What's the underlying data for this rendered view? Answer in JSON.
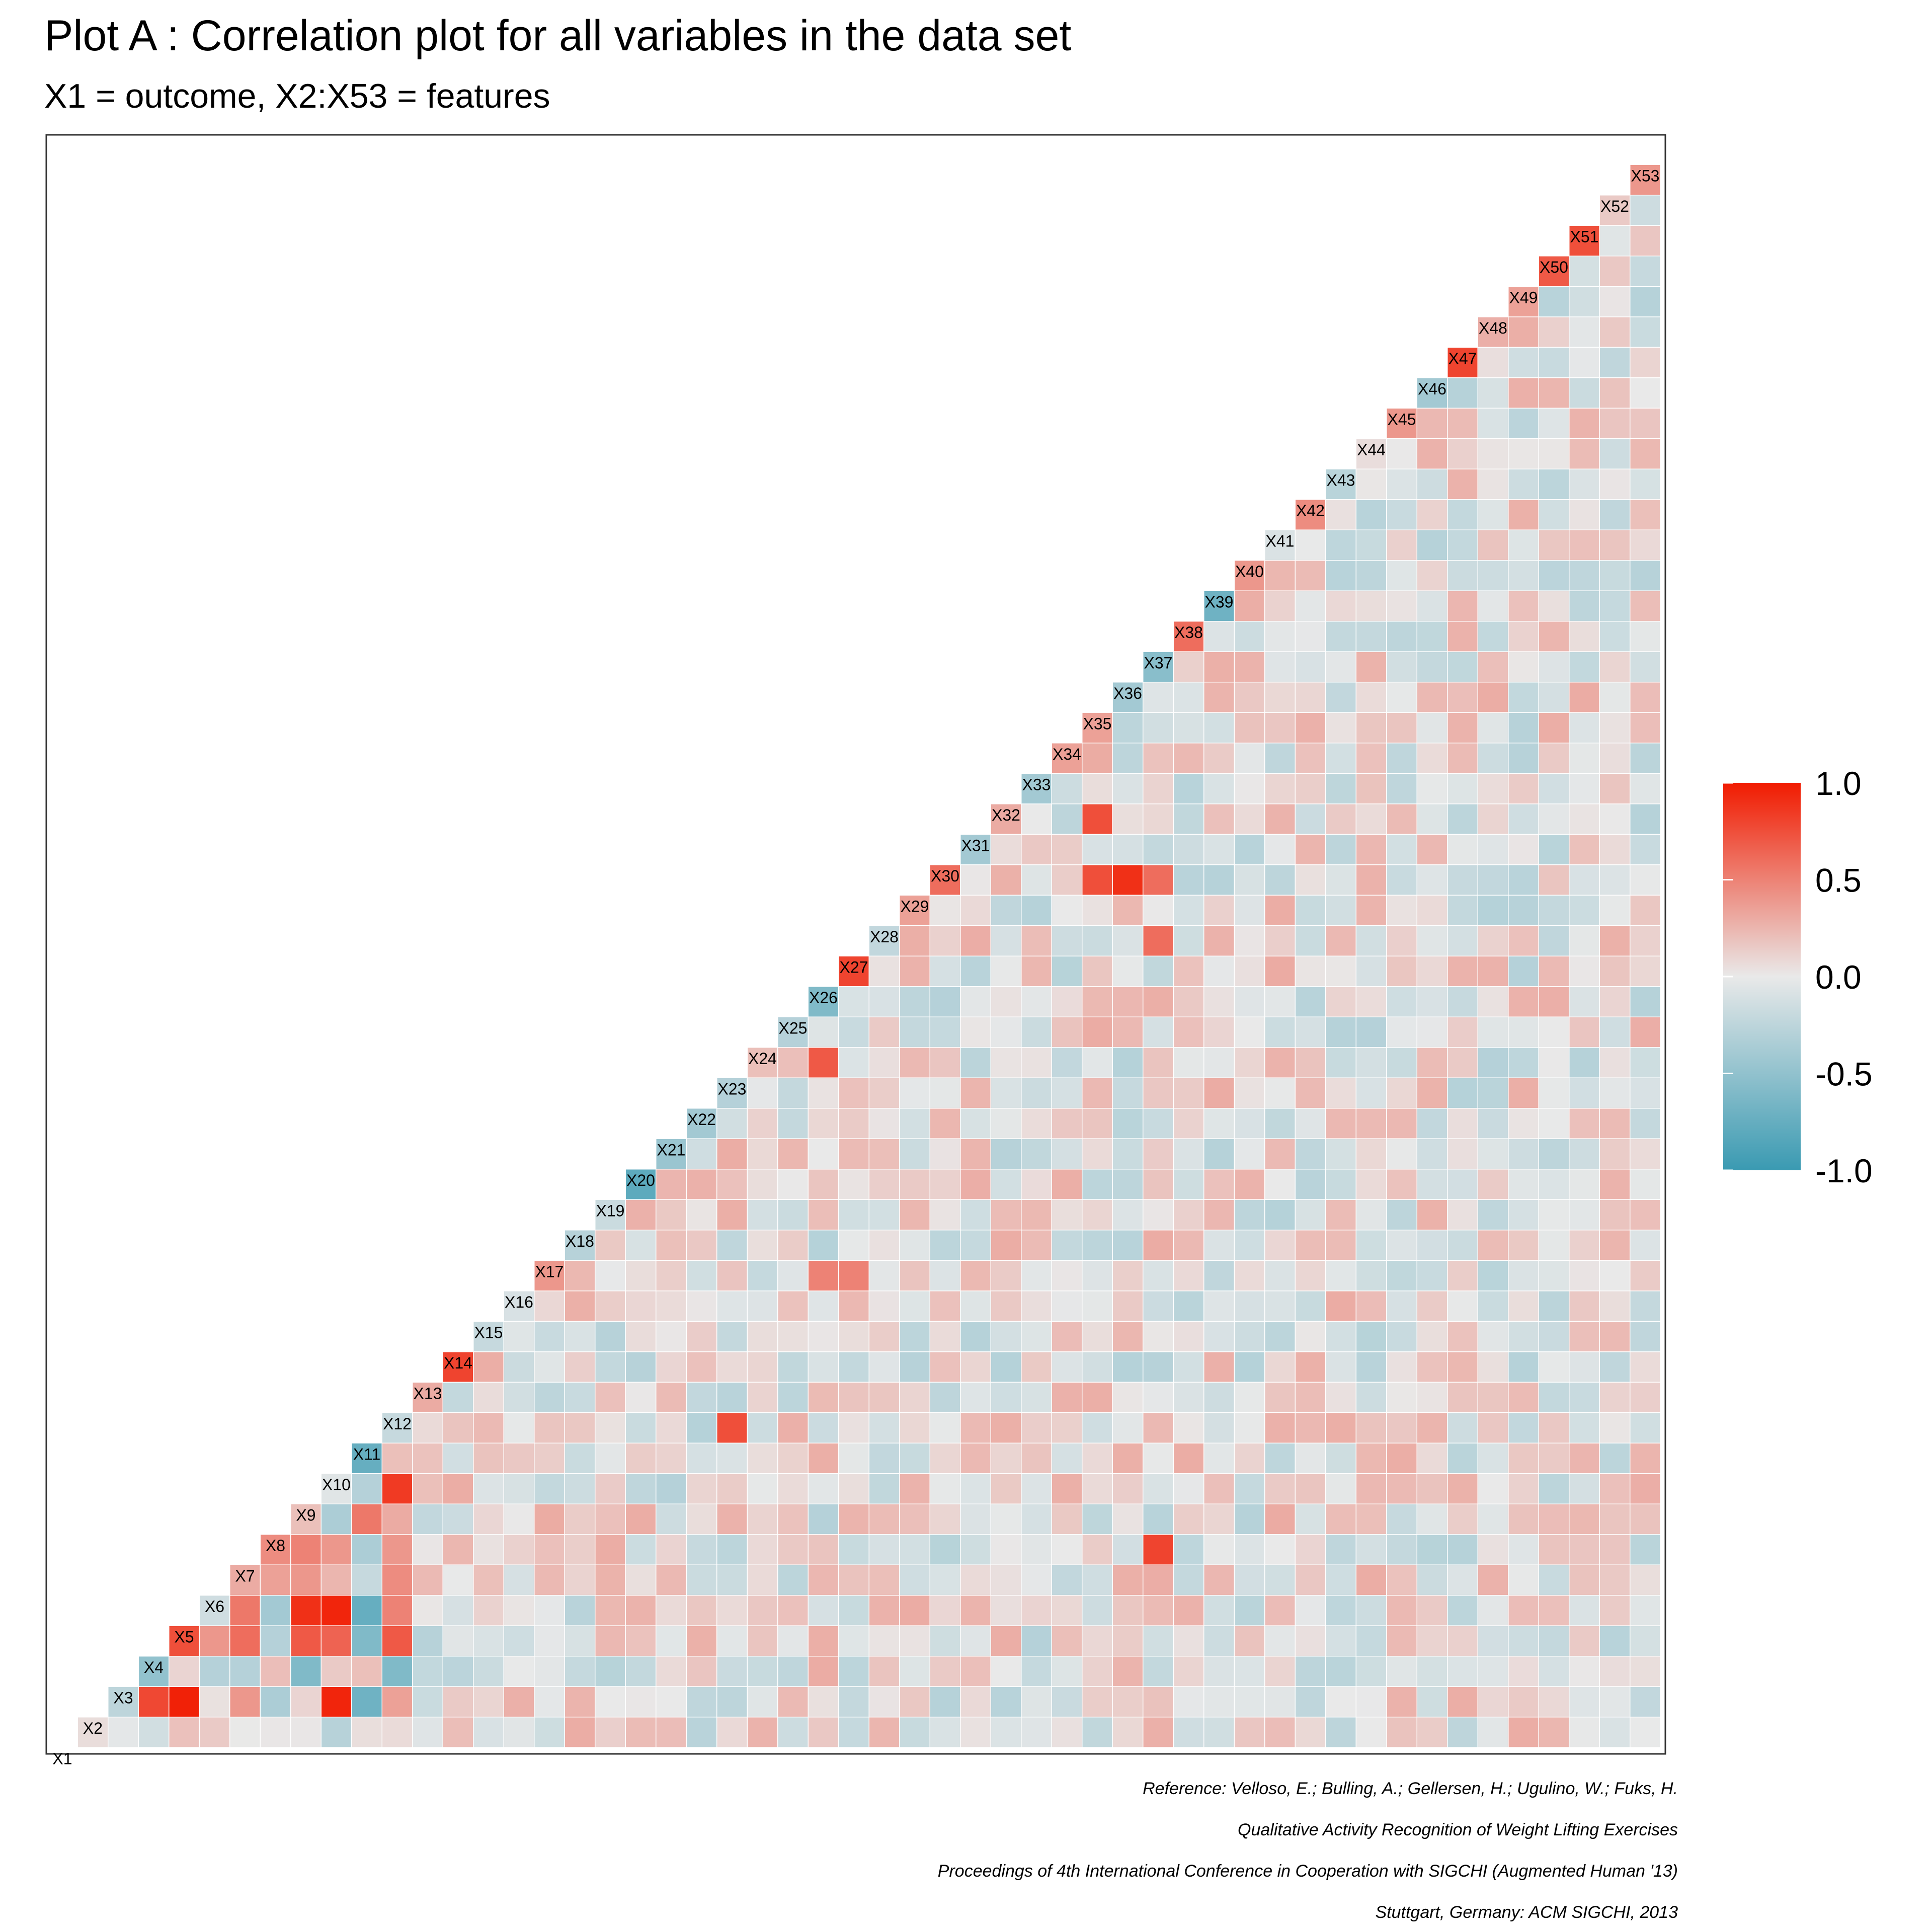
{
  "chart_data": {
    "type": "heatmap",
    "title": "Plot A : Correlation plot for all variables in the data set",
    "subtitle": "X1 = outcome, X2:X53 = features",
    "variables": [
      "X1",
      "X2",
      "X3",
      "X4",
      "X5",
      "X6",
      "X7",
      "X8",
      "X9",
      "X10",
      "X11",
      "X12",
      "X13",
      "X14",
      "X15",
      "X16",
      "X17",
      "X18",
      "X19",
      "X20",
      "X21",
      "X22",
      "X23",
      "X24",
      "X25",
      "X26",
      "X27",
      "X28",
      "X29",
      "X30",
      "X31",
      "X32",
      "X33",
      "X34",
      "X35",
      "X36",
      "X37",
      "X38",
      "X39",
      "X40",
      "X41",
      "X42",
      "X43",
      "X44",
      "X45",
      "X46",
      "X47",
      "X48",
      "X49",
      "X50",
      "X51",
      "X52",
      "X53"
    ],
    "value_range": [
      -1,
      1
    ],
    "legend": {
      "position": "right",
      "ticks": [
        "1.0",
        "0.5",
        "0.0",
        "-0.5",
        "-1.0"
      ]
    },
    "color_scale": {
      "low": "#3a9ab2",
      "mid": "#e9e9e9",
      "high": "#f11b00"
    },
    "cells_note": "lower-triangle correlation matrix; cells listed as [row, column, r] for notable values, all others approx. 0",
    "cells": [
      [
        2,
        1,
        0.06
      ],
      [
        3,
        2,
        -0.25
      ],
      [
        4,
        2,
        0.78
      ],
      [
        4,
        3,
        -0.5
      ],
      [
        5,
        2,
        0.97
      ],
      [
        5,
        3,
        0.1
      ],
      [
        5,
        4,
        0.75
      ],
      [
        6,
        3,
        -0.3
      ],
      [
        6,
        4,
        0.4
      ],
      [
        6,
        5,
        -0.15
      ],
      [
        7,
        2,
        0.4
      ],
      [
        7,
        3,
        -0.3
      ],
      [
        7,
        4,
        0.6
      ],
      [
        7,
        5,
        0.55
      ],
      [
        7,
        6,
        0.3
      ],
      [
        8,
        2,
        -0.35
      ],
      [
        8,
        4,
        -0.3
      ],
      [
        8,
        5,
        -0.4
      ],
      [
        8,
        6,
        0.35
      ],
      [
        8,
        7,
        0.45
      ],
      [
        9,
        2,
        0.1
      ],
      [
        9,
        3,
        -0.6
      ],
      [
        9,
        4,
        0.7
      ],
      [
        9,
        5,
        0.9
      ],
      [
        9,
        6,
        0.4
      ],
      [
        9,
        7,
        0.5
      ],
      [
        9,
        8,
        0.2
      ],
      [
        10,
        2,
        0.95
      ],
      [
        10,
        3,
        0.15
      ],
      [
        10,
        4,
        0.65
      ],
      [
        10,
        5,
        0.95
      ],
      [
        10,
        6,
        0.25
      ],
      [
        10,
        7,
        0.4
      ],
      [
        10,
        8,
        -0.35
      ],
      [
        10,
        9,
        -0.05
      ],
      [
        11,
        2,
        -0.7
      ],
      [
        11,
        3,
        0.2
      ],
      [
        11,
        4,
        -0.6
      ],
      [
        11,
        5,
        -0.75
      ],
      [
        11,
        6,
        -0.2
      ],
      [
        11,
        7,
        -0.35
      ],
      [
        11,
        8,
        0.55
      ],
      [
        11,
        9,
        -0.3
      ],
      [
        11,
        10,
        -0.75
      ],
      [
        12,
        2,
        0.35
      ],
      [
        12,
        3,
        -0.6
      ],
      [
        12,
        4,
        0.7
      ],
      [
        12,
        5,
        0.5
      ],
      [
        12,
        6,
        0.45
      ],
      [
        12,
        7,
        0.4
      ],
      [
        12,
        8,
        0.3
      ],
      [
        12,
        9,
        0.85
      ],
      [
        12,
        10,
        0.2
      ],
      [
        12,
        11,
        -0.2
      ],
      [
        13,
        12,
        0.3
      ],
      [
        14,
        13,
        0.8
      ],
      [
        15,
        14,
        -0.2
      ],
      [
        16,
        15,
        -0.1
      ],
      [
        17,
        16,
        0.4
      ],
      [
        20,
        19,
        -0.8
      ],
      [
        21,
        20,
        -0.45
      ],
      [
        21,
        21,
        0.35
      ],
      [
        22,
        21,
        -0.4
      ],
      [
        23,
        22,
        -0.3
      ],
      [
        23,
        23,
        0.85
      ],
      [
        24,
        23,
        0.2
      ],
      [
        25,
        24,
        -0.3
      ],
      [
        25,
        25,
        0.55
      ],
      [
        26,
        25,
        -0.6
      ],
      [
        26,
        26,
        0.75
      ],
      [
        27,
        26,
        0.8
      ],
      [
        27,
        27,
        -0.5
      ],
      [
        29,
        28,
        0.35
      ],
      [
        30,
        29,
        0.6
      ],
      [
        31,
        30,
        -0.4
      ],
      [
        32,
        31,
        0.3
      ],
      [
        33,
        32,
        -0.4
      ],
      [
        34,
        33,
        0.35
      ],
      [
        35,
        34,
        0.35
      ],
      [
        36,
        35,
        -0.4
      ],
      [
        36,
        36,
        0.75
      ],
      [
        37,
        36,
        -0.55
      ],
      [
        37,
        37,
        0.65
      ],
      [
        38,
        37,
        0.6
      ],
      [
        38,
        38,
        -0.65
      ],
      [
        39,
        38,
        -0.7
      ],
      [
        40,
        39,
        0.4
      ],
      [
        42,
        41,
        0.45
      ],
      [
        45,
        44,
        0.4
      ],
      [
        46,
        45,
        -0.4
      ],
      [
        47,
        46,
        0.8
      ],
      [
        49,
        48,
        0.35
      ],
      [
        50,
        49,
        0.7
      ],
      [
        51,
        50,
        0.75
      ],
      [
        52,
        51,
        0.15
      ],
      [
        53,
        52,
        0.4
      ],
      [
        35,
        31,
        0.75
      ],
      [
        35,
        29,
        0.75
      ],
      [
        36,
        29,
        0.9
      ],
      [
        37,
        29,
        0.6
      ],
      [
        37,
        27,
        0.6
      ],
      [
        26,
        23,
        0.7
      ],
      [
        26,
        16,
        0.5
      ],
      [
        27,
        16,
        0.5
      ],
      [
        23,
        11,
        0.75
      ],
      [
        37,
        7,
        0.8
      ]
    ]
  },
  "caption": [
    "Reference: Velloso, E.; Bulling, A.; Gellersen, H.; Ugulino, W.; Fuks, H.",
    "Qualitative Activity Recognition of Weight Lifting Exercises",
    "Proceedings of 4th International Conference in Cooperation with SIGCHI (Augmented Human '13)",
    "Stuttgart, Germany: ACM SIGCHI, 2013"
  ]
}
